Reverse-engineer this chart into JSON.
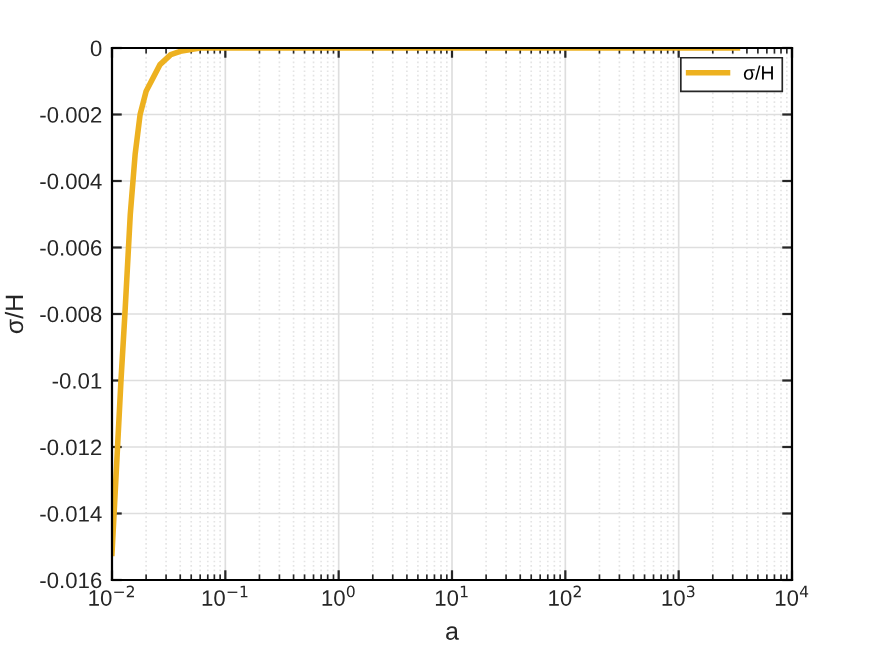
{
  "chart_data": {
    "type": "line",
    "xlabel": "a",
    "ylabel": "σ/H",
    "log": "x",
    "xlim": [
      0.01,
      10000
    ],
    "ylim": [
      -0.016,
      0
    ],
    "xticks": [
      {
        "value": 0.01,
        "label": "10$^{−2}$"
      },
      {
        "value": 0.1,
        "label": "10$^{−1}$"
      },
      {
        "value": 1,
        "label": "10$^{0}$"
      },
      {
        "value": 10,
        "label": "10$^{1}$"
      },
      {
        "value": 100,
        "label": "10$^{2}$"
      },
      {
        "value": 1000,
        "label": "10$^{3}$"
      },
      {
        "value": 10000,
        "label": "10$^{4}$"
      }
    ],
    "yticks": [
      -0.016,
      -0.014,
      -0.012,
      -0.01,
      -0.008,
      -0.006,
      -0.004,
      -0.002,
      0
    ],
    "grid": true,
    "legend": "top right",
    "marker": "none",
    "line_style": "solid",
    "series": [
      {
        "name": "σ/H",
        "color": "#edb120",
        "x": [
          0.01,
          0.011,
          0.012,
          0.013,
          0.0145,
          0.016,
          0.0177,
          0.02,
          0.0265,
          0.033,
          0.04,
          0.06,
          0.1,
          1,
          10,
          100,
          1000,
          3300
        ],
        "values": [
          -0.0152,
          -0.0125,
          -0.01,
          -0.008,
          -0.005,
          -0.0032,
          -0.002,
          -0.0013,
          -0.0005,
          -0.0002,
          -0.0001,
          0,
          0,
          0,
          0,
          0,
          0,
          0
        ]
      }
    ]
  }
}
